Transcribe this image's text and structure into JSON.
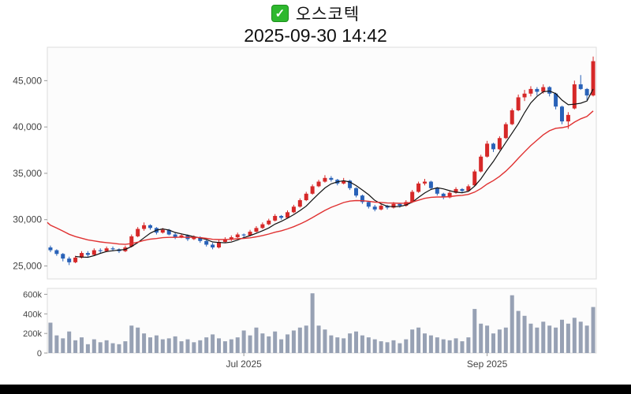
{
  "header": {
    "title": "오스코텍",
    "timestamp": "2025-09-30 14:42"
  },
  "chart_data": {
    "type": "candlestick",
    "title": "오스코텍",
    "subtitle": "2025-09-30 14:42",
    "legend": "none",
    "grid": "off",
    "price_axis": {
      "tick_values": [
        25000,
        30000,
        35000,
        40000,
        45000
      ],
      "tick_labels": [
        "25,000",
        "30,000",
        "35,000",
        "40,000",
        "45,000"
      ],
      "ylim": [
        23600,
        48600
      ]
    },
    "volume_axis": {
      "tick_values": [
        0,
        200000,
        400000,
        600000
      ],
      "tick_labels": [
        "0",
        "200k",
        "400k",
        "600k"
      ],
      "ylim": [
        0,
        660000
      ]
    },
    "x_ticks": [
      {
        "index": 31,
        "label": "Jul 2025"
      },
      {
        "index": 70,
        "label": "Sep 2025"
      }
    ],
    "colors": {
      "up": "#d62828",
      "down": "#2962b8",
      "ma_fast": "#111111",
      "ma_slow": "#e03131",
      "volume_bar": "#97a1b4",
      "axis": "#444444",
      "plot_border": "#dddddd",
      "plot_bg": "#fcfcfc",
      "bottom_bar": "#000000"
    },
    "ma_fast_period": 5,
    "ma_slow": {
      "type": "ema",
      "alpha": 0.1,
      "seed": 29700
    },
    "candles": [
      [
        27000,
        27200,
        26500,
        26700
      ],
      [
        26700,
        26800,
        26100,
        26300
      ],
      [
        26300,
        26400,
        25500,
        25800
      ],
      [
        25800,
        26000,
        25100,
        25400
      ],
      [
        25400,
        26100,
        25300,
        25900
      ],
      [
        25900,
        26600,
        25800,
        26400
      ],
      [
        26400,
        26600,
        26000,
        26200
      ],
      [
        26200,
        26900,
        26100,
        26700
      ],
      [
        26700,
        26900,
        26400,
        26600
      ],
      [
        26600,
        27100,
        26500,
        26900
      ],
      [
        26900,
        27100,
        26600,
        26800
      ],
      [
        26800,
        26900,
        26400,
        26600
      ],
      [
        26600,
        27200,
        26500,
        27000
      ],
      [
        27100,
        28400,
        27000,
        28200
      ],
      [
        28200,
        29200,
        28100,
        29000
      ],
      [
        29000,
        29700,
        28800,
        29400
      ],
      [
        29400,
        29500,
        28900,
        29100
      ],
      [
        29100,
        29200,
        28400,
        28600
      ],
      [
        28600,
        29100,
        28500,
        28900
      ],
      [
        28900,
        29000,
        28300,
        28400
      ],
      [
        28400,
        28600,
        27900,
        28100
      ],
      [
        28100,
        28500,
        28000,
        28300
      ],
      [
        28300,
        28400,
        27700,
        27900
      ],
      [
        27900,
        28300,
        27800,
        28100
      ],
      [
        28100,
        28200,
        27500,
        27700
      ],
      [
        27700,
        27800,
        27100,
        27300
      ],
      [
        27300,
        27500,
        26800,
        27000
      ],
      [
        27000,
        27800,
        26900,
        27600
      ],
      [
        27600,
        28100,
        27500,
        27900
      ],
      [
        27900,
        28300,
        27700,
        28100
      ],
      [
        28100,
        28600,
        28000,
        28400
      ],
      [
        28400,
        28500,
        28100,
        28300
      ],
      [
        28300,
        28900,
        28200,
        28700
      ],
      [
        28700,
        29300,
        28600,
        29100
      ],
      [
        29100,
        29700,
        29000,
        29500
      ],
      [
        29500,
        30100,
        29400,
        29900
      ],
      [
        29900,
        30600,
        29800,
        30400
      ],
      [
        30400,
        30500,
        30000,
        30200
      ],
      [
        30200,
        31000,
        30100,
        30800
      ],
      [
        30800,
        31600,
        30700,
        31400
      ],
      [
        31400,
        32300,
        31300,
        32100
      ],
      [
        32100,
        33000,
        32000,
        32800
      ],
      [
        32800,
        33800,
        32700,
        33600
      ],
      [
        33600,
        34300,
        33500,
        34100
      ],
      [
        34100,
        34800,
        34000,
        34500
      ],
      [
        34500,
        34700,
        34100,
        34300
      ],
      [
        34300,
        34400,
        33700,
        33900
      ],
      [
        33900,
        34500,
        33800,
        34200
      ],
      [
        34200,
        34300,
        33200,
        33400
      ],
      [
        33400,
        33500,
        32400,
        32600
      ],
      [
        32600,
        32700,
        31700,
        31900
      ],
      [
        31900,
        32000,
        31200,
        31400
      ],
      [
        31400,
        31600,
        30900,
        31100
      ],
      [
        31100,
        31700,
        31000,
        31500
      ],
      [
        31500,
        31600,
        31100,
        31300
      ],
      [
        31300,
        31900,
        31200,
        31700
      ],
      [
        31700,
        31800,
        31300,
        31500
      ],
      [
        31500,
        32100,
        31400,
        31900
      ],
      [
        31900,
        33200,
        31800,
        33000
      ],
      [
        33000,
        34100,
        32900,
        33900
      ],
      [
        33900,
        34400,
        33700,
        34100
      ],
      [
        34100,
        34200,
        33200,
        33400
      ],
      [
        33400,
        33500,
        32600,
        32800
      ],
      [
        32800,
        32900,
        32200,
        32400
      ],
      [
        32400,
        33100,
        32300,
        32900
      ],
      [
        32900,
        33500,
        32800,
        33300
      ],
      [
        33300,
        33400,
        32900,
        33100
      ],
      [
        33100,
        33800,
        33000,
        33600
      ],
      [
        33700,
        35400,
        33600,
        35200
      ],
      [
        35200,
        37000,
        35100,
        36800
      ],
      [
        36800,
        38500,
        36700,
        38200
      ],
      [
        38200,
        38300,
        37300,
        37600
      ],
      [
        37600,
        39000,
        37500,
        38800
      ],
      [
        38800,
        40500,
        38700,
        40300
      ],
      [
        40300,
        42000,
        40200,
        41800
      ],
      [
        41800,
        43500,
        41700,
        43200
      ],
      [
        43200,
        44000,
        42800,
        43600
      ],
      [
        43600,
        44400,
        43300,
        44100
      ],
      [
        44100,
        44300,
        43400,
        43800
      ],
      [
        43800,
        44600,
        43600,
        44300
      ],
      [
        44300,
        44400,
        43300,
        43600
      ],
      [
        43600,
        43700,
        41900,
        42200
      ],
      [
        42200,
        42300,
        40300,
        40600
      ],
      [
        40600,
        41600,
        39800,
        41300
      ],
      [
        42000,
        45000,
        41900,
        44600
      ],
      [
        44600,
        45600,
        44000,
        44100
      ],
      [
        44100,
        44200,
        42900,
        43400
      ],
      [
        43400,
        47600,
        43300,
        47100
      ]
    ],
    "volumes": [
      310000,
      180000,
      150000,
      220000,
      130000,
      160000,
      90000,
      140000,
      110000,
      130000,
      100000,
      90000,
      120000,
      280000,
      260000,
      200000,
      160000,
      180000,
      140000,
      150000,
      170000,
      120000,
      140000,
      110000,
      130000,
      160000,
      190000,
      150000,
      120000,
      140000,
      160000,
      230000,
      180000,
      260000,
      200000,
      170000,
      220000,
      140000,
      190000,
      230000,
      260000,
      280000,
      610000,
      280000,
      240000,
      180000,
      160000,
      150000,
      200000,
      220000,
      180000,
      160000,
      140000,
      120000,
      110000,
      130000,
      100000,
      140000,
      240000,
      260000,
      200000,
      180000,
      160000,
      140000,
      130000,
      150000,
      120000,
      160000,
      450000,
      300000,
      280000,
      200000,
      240000,
      260000,
      590000,
      430000,
      380000,
      300000,
      260000,
      320000,
      280000,
      260000,
      340000,
      300000,
      360000,
      320000,
      280000,
      470000
    ]
  }
}
